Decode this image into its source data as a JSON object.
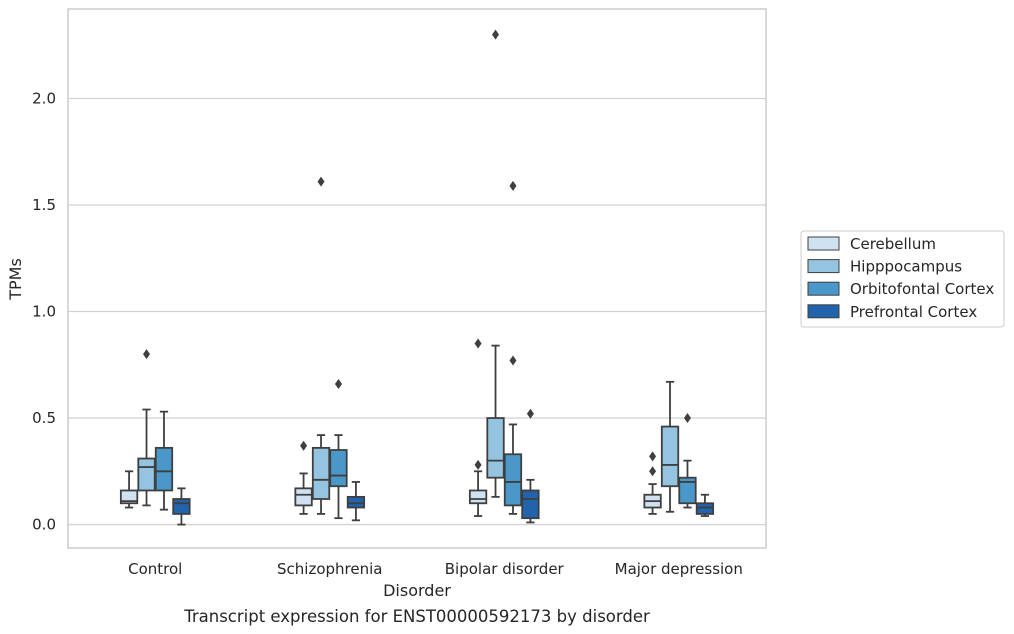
{
  "chart_data": {
    "type": "box",
    "xlabel": "Disorder",
    "ylabel": "TPMs",
    "caption": "Transcript expression for ENST00000592173 by disorder",
    "ylim": [
      -0.11,
      2.42
    ],
    "yticks": [
      "0.0",
      "0.5",
      "1.0",
      "1.5",
      "2.0"
    ],
    "grid": "horizontal",
    "legend_position": "right",
    "categories": [
      "Control",
      "Schizophrenia",
      "Bipolar disorder",
      "Major depression"
    ],
    "series": [
      {
        "name": "Cerebellum",
        "color": "#d0e1f2",
        "boxes": [
          {
            "whislo": 0.08,
            "q1": 0.1,
            "med": 0.11,
            "q3": 0.16,
            "whishi": 0.25,
            "fliers": []
          },
          {
            "whislo": 0.05,
            "q1": 0.09,
            "med": 0.14,
            "q3": 0.17,
            "whishi": 0.24,
            "fliers": [
              0.37
            ]
          },
          {
            "whislo": 0.04,
            "q1": 0.1,
            "med": 0.12,
            "q3": 0.16,
            "whishi": 0.25,
            "fliers": [
              0.28,
              0.85
            ]
          },
          {
            "whislo": 0.05,
            "q1": 0.08,
            "med": 0.11,
            "q3": 0.14,
            "whishi": 0.19,
            "fliers": [
              0.25,
              0.32
            ]
          }
        ]
      },
      {
        "name": "Hipppocampus",
        "color": "#94c4df",
        "boxes": [
          {
            "whislo": 0.09,
            "q1": 0.16,
            "med": 0.27,
            "q3": 0.31,
            "whishi": 0.54,
            "fliers": [
              0.8
            ]
          },
          {
            "whislo": 0.05,
            "q1": 0.12,
            "med": 0.21,
            "q3": 0.36,
            "whishi": 0.42,
            "fliers": [
              1.61
            ]
          },
          {
            "whislo": 0.13,
            "q1": 0.22,
            "med": 0.3,
            "q3": 0.5,
            "whishi": 0.84,
            "fliers": [
              2.3
            ]
          },
          {
            "whislo": 0.06,
            "q1": 0.18,
            "med": 0.28,
            "q3": 0.46,
            "whishi": 0.67,
            "fliers": []
          }
        ]
      },
      {
        "name": "Orbitofontal Cortex",
        "color": "#4a98c9",
        "boxes": [
          {
            "whislo": 0.07,
            "q1": 0.16,
            "med": 0.25,
            "q3": 0.36,
            "whishi": 0.53,
            "fliers": []
          },
          {
            "whislo": 0.03,
            "q1": 0.18,
            "med": 0.23,
            "q3": 0.35,
            "whishi": 0.42,
            "fliers": [
              0.66
            ]
          },
          {
            "whislo": 0.05,
            "q1": 0.09,
            "med": 0.2,
            "q3": 0.33,
            "whishi": 0.47,
            "fliers": [
              0.77,
              1.59
            ]
          },
          {
            "whislo": 0.08,
            "q1": 0.1,
            "med": 0.2,
            "q3": 0.22,
            "whishi": 0.3,
            "fliers": [
              0.5
            ]
          }
        ]
      },
      {
        "name": "Prefrontal Cortex",
        "color": "#2164ab",
        "boxes": [
          {
            "whislo": 0.0,
            "q1": 0.05,
            "med": 0.1,
            "q3": 0.12,
            "whishi": 0.17,
            "fliers": []
          },
          {
            "whislo": 0.02,
            "q1": 0.08,
            "med": 0.1,
            "q3": 0.13,
            "whishi": 0.2,
            "fliers": []
          },
          {
            "whislo": 0.01,
            "q1": 0.03,
            "med": 0.12,
            "q3": 0.16,
            "whishi": 0.21,
            "fliers": [
              0.52
            ]
          },
          {
            "whislo": 0.04,
            "q1": 0.05,
            "med": 0.08,
            "q3": 0.1,
            "whishi": 0.14,
            "fliers": []
          }
        ]
      }
    ]
  }
}
